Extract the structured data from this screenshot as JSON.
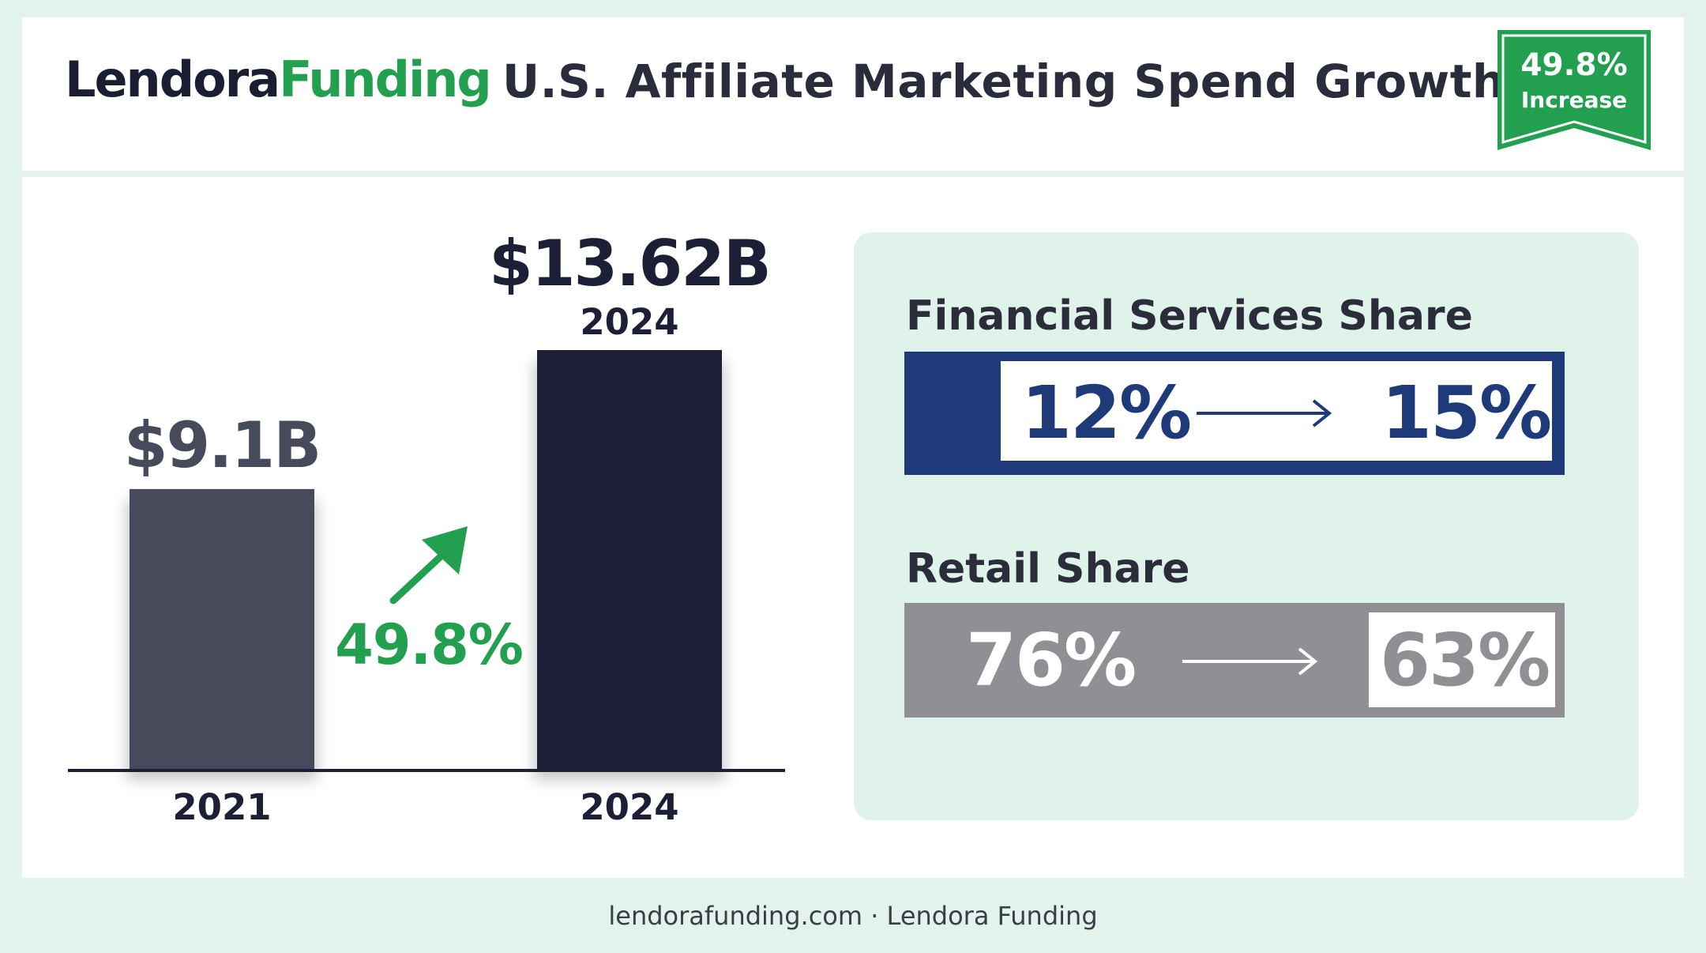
{
  "brand": {
    "name_part1": "Lendora",
    "name_part2": "Funding"
  },
  "header": {
    "title": "U.S. Affiliate Marketing Spend Growth",
    "badge_value": "49.8%",
    "badge_label": "Increase"
  },
  "chart_data": {
    "type": "bar",
    "categories": [
      "2021",
      "2024"
    ],
    "values": [
      9.1,
      13.62
    ],
    "value_labels": [
      "$9.1B",
      "$13.62B"
    ],
    "top_year_label": "2024",
    "growth_label": "49.8%",
    "colors": [
      "#474a5b",
      "#1c1f35"
    ]
  },
  "shares": {
    "financial": {
      "label": "Financial Services Share",
      "from": "12%",
      "to": "15%",
      "color": "#1e3a78"
    },
    "retail": {
      "label": "Retail Share",
      "from": "76%",
      "to": "63%",
      "color": "#909094"
    }
  },
  "colors": {
    "accent_green": "#22a04f",
    "panel_bg": "#e0f3ea"
  },
  "footer": {
    "text": "lendorafunding.com · Lendora Funding"
  }
}
